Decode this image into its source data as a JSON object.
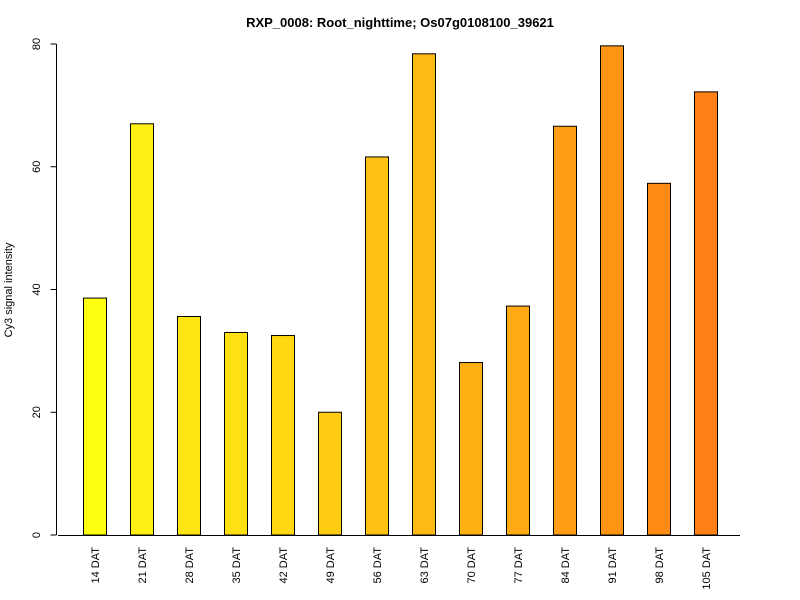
{
  "chart_data": {
    "type": "bar",
    "title": "RXP_0008: Root_nighttime; Os07g0108100_39621",
    "xlabel": "",
    "ylabel": "Cy3 signal intensity",
    "ylim": [
      0,
      80
    ],
    "yticks": [
      0,
      20,
      40,
      60,
      80
    ],
    "grid": false,
    "categories": [
      "14 DAT",
      "21 DAT",
      "28 DAT",
      "35 DAT",
      "42 DAT",
      "49 DAT",
      "56 DAT",
      "63 DAT",
      "70 DAT",
      "77 DAT",
      "84 DAT",
      "91 DAT",
      "98 DAT",
      "105 DAT"
    ],
    "values": [
      38.6,
      67.0,
      35.6,
      33.0,
      32.5,
      20.0,
      61.6,
      78.4,
      28.1,
      37.3,
      66.6,
      79.7,
      57.3,
      72.2
    ],
    "colors": [
      "#ffff14",
      "#fff014",
      "#ffe514",
      "#ffe014",
      "#ffd814",
      "#ffcc14",
      "#ffc114",
      "#ffb914",
      "#ffb114",
      "#ffa914",
      "#ff9e14",
      "#ff9514",
      "#ff8a14",
      "#ff8014"
    ]
  }
}
